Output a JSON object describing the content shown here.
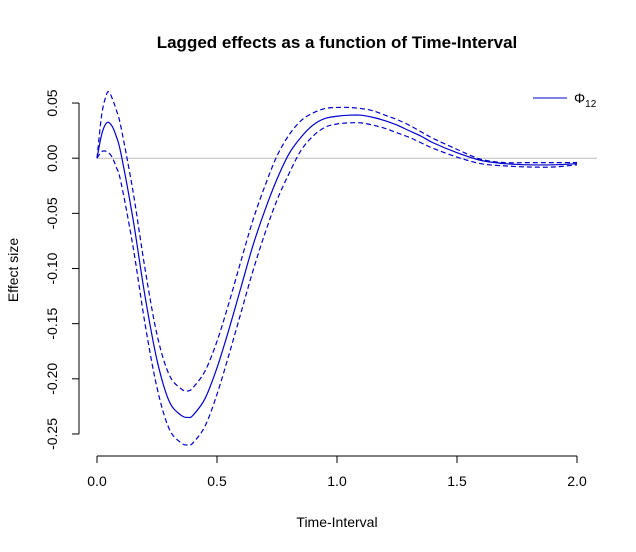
{
  "chart_data": {
    "type": "line",
    "title": "Lagged effects as a function of Time-Interval",
    "xlabel": "Time-Interval",
    "ylabel": "Effect size",
    "xlim": [
      0,
      2
    ],
    "ylim": [
      -0.26,
      0.06
    ],
    "x_ticks": [
      {
        "value": 0.0,
        "label": "0.0"
      },
      {
        "value": 0.5,
        "label": "0.5"
      },
      {
        "value": 1.0,
        "label": "1.0"
      },
      {
        "value": 1.5,
        "label": "1.5"
      },
      {
        "value": 2.0,
        "label": "2.0"
      }
    ],
    "y_ticks": [
      {
        "value": 0.05,
        "label": "0.05"
      },
      {
        "value": 0.0,
        "label": "0.00"
      },
      {
        "value": -0.05,
        "label": "-0.05"
      },
      {
        "value": -0.1,
        "label": "-0.10"
      },
      {
        "value": -0.15,
        "label": "-0.15"
      },
      {
        "value": -0.2,
        "label": "-0.20"
      },
      {
        "value": -0.25,
        "label": "-0.25"
      }
    ],
    "reference_line": {
      "y": 0,
      "color": "#bebebe"
    },
    "legend": {
      "position": "top-right",
      "label_main": "Φ",
      "label_sub": "12"
    },
    "series": [
      {
        "role": "estimate",
        "color": "#0000cd",
        "style": "solid",
        "x": [
          0,
          0.02,
          0.04,
          0.06,
          0.08,
          0.1,
          0.15,
          0.2,
          0.25,
          0.3,
          0.35,
          0.38,
          0.4,
          0.45,
          0.5,
          0.55,
          0.6,
          0.65,
          0.7,
          0.75,
          0.8,
          0.85,
          0.9,
          0.95,
          1.0,
          1.05,
          1.1,
          1.15,
          1.2,
          1.25,
          1.3,
          1.35,
          1.4,
          1.5,
          1.6,
          1.7,
          1.8,
          1.9,
          2.0
        ],
        "y": [
          0.0,
          0.022,
          0.032,
          0.03,
          0.02,
          0.004,
          -0.055,
          -0.125,
          -0.183,
          -0.22,
          -0.233,
          -0.235,
          -0.233,
          -0.218,
          -0.19,
          -0.155,
          -0.117,
          -0.079,
          -0.047,
          -0.019,
          0.004,
          0.019,
          0.03,
          0.036,
          0.038,
          0.039,
          0.039,
          0.037,
          0.034,
          0.03,
          0.025,
          0.02,
          0.014,
          0.005,
          -0.002,
          -0.005,
          -0.006,
          -0.006,
          -0.005
        ]
      },
      {
        "role": "upper",
        "color": "#0000cd",
        "style": "dashed",
        "x": [
          0,
          0.02,
          0.04,
          0.05,
          0.06,
          0.08,
          0.1,
          0.15,
          0.2,
          0.25,
          0.3,
          0.35,
          0.38,
          0.4,
          0.45,
          0.5,
          0.55,
          0.6,
          0.65,
          0.7,
          0.75,
          0.8,
          0.85,
          0.9,
          0.95,
          1.0,
          1.05,
          1.1,
          1.15,
          1.2,
          1.25,
          1.3,
          1.35,
          1.4,
          1.5,
          1.6,
          1.7,
          1.8,
          1.9,
          2.0
        ],
        "y": [
          0.0,
          0.04,
          0.058,
          0.06,
          0.056,
          0.044,
          0.028,
          -0.03,
          -0.1,
          -0.16,
          -0.196,
          -0.209,
          -0.211,
          -0.208,
          -0.193,
          -0.166,
          -0.131,
          -0.093,
          -0.056,
          -0.025,
          0.002,
          0.021,
          0.034,
          0.041,
          0.045,
          0.046,
          0.046,
          0.045,
          0.043,
          0.039,
          0.035,
          0.03,
          0.024,
          0.018,
          0.008,
          -0.001,
          -0.004,
          -0.004,
          -0.004,
          -0.004
        ]
      },
      {
        "role": "lower",
        "color": "#0000cd",
        "style": "dashed",
        "x": [
          0,
          0.02,
          0.04,
          0.06,
          0.08,
          0.1,
          0.15,
          0.2,
          0.25,
          0.3,
          0.35,
          0.38,
          0.4,
          0.45,
          0.5,
          0.55,
          0.6,
          0.65,
          0.7,
          0.75,
          0.8,
          0.85,
          0.9,
          0.95,
          1.0,
          1.05,
          1.1,
          1.15,
          1.2,
          1.25,
          1.3,
          1.35,
          1.4,
          1.5,
          1.6,
          1.7,
          1.8,
          1.9,
          2.0
        ],
        "y": [
          0.0,
          0.006,
          0.006,
          0.002,
          -0.008,
          -0.022,
          -0.08,
          -0.15,
          -0.208,
          -0.245,
          -0.258,
          -0.26,
          -0.258,
          -0.243,
          -0.214,
          -0.178,
          -0.14,
          -0.102,
          -0.068,
          -0.038,
          -0.014,
          0.007,
          0.02,
          0.028,
          0.031,
          0.032,
          0.032,
          0.03,
          0.027,
          0.023,
          0.019,
          0.014,
          0.009,
          0.001,
          -0.005,
          -0.007,
          -0.008,
          -0.008,
          -0.006
        ]
      }
    ]
  }
}
